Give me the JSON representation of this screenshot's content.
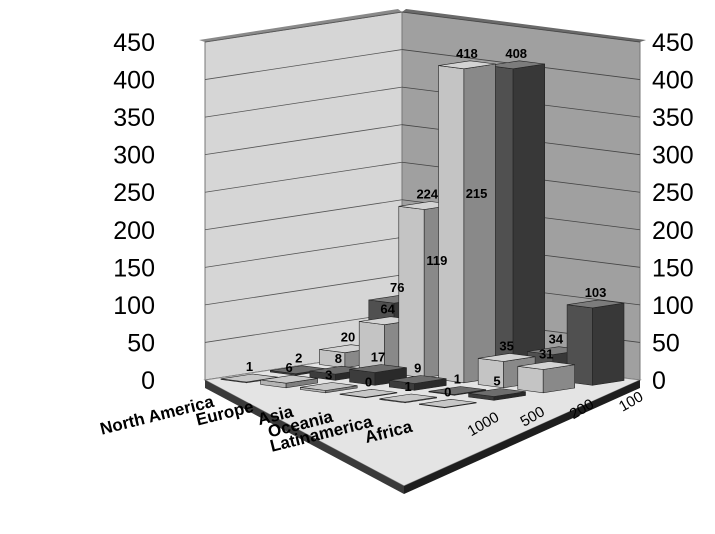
{
  "chart_data": {
    "type": "bar",
    "variant": "3d-grid",
    "title": "",
    "categories": [
      "North America",
      "Europe",
      "Asia",
      "Oceania",
      "Latinamerica",
      "Africa"
    ],
    "x": [
      "100",
      "200",
      "500",
      "1000"
    ],
    "ylim": [
      0,
      450
    ],
    "yticks": [
      "0",
      "50",
      "100",
      "150",
      "200",
      "250",
      "300",
      "350",
      "400",
      "450"
    ],
    "grid": true,
    "series": [
      {
        "x": "100",
        "values": [
          76,
          119,
          215,
          408,
          34,
          103
        ]
      },
      {
        "x": "200",
        "values": [
          20,
          64,
          224,
          418,
          35,
          31
        ]
      },
      {
        "x": "500",
        "values": [
          2,
          8,
          17,
          9,
          1,
          5
        ]
      },
      {
        "x": "1000",
        "values": [
          1,
          6,
          3,
          0,
          1,
          0
        ]
      }
    ],
    "colors": {
      "100": "#505050",
      "200": "#c4c4c4",
      "500": "#3c3c3c",
      "1000": "#b4b4b4"
    }
  }
}
